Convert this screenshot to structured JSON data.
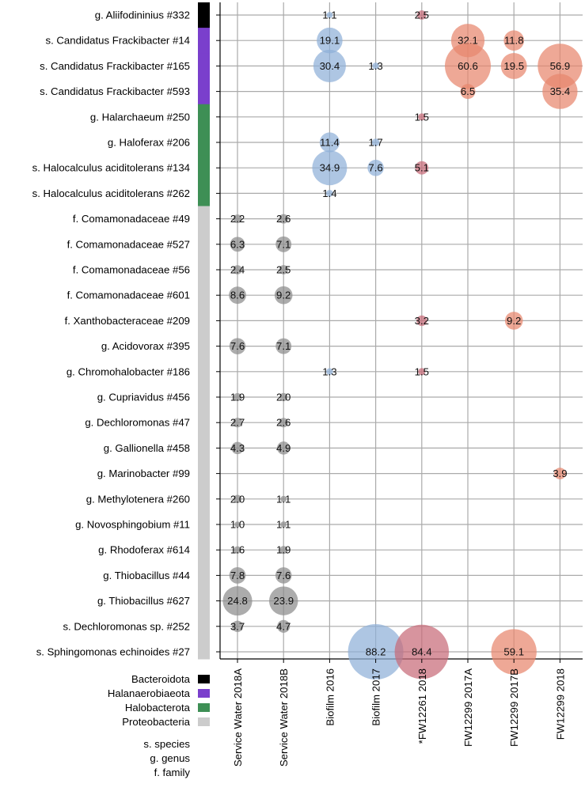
{
  "chart_data": {
    "type": "bubble-matrix",
    "columns": [
      "Service Water 2018A",
      "Service Water 2018B",
      "Biofilm 2016",
      "Biofilm 2017",
      "*FW12261 2018",
      "FW12299 2017A",
      "FW12299 2017B",
      "FW12299 2018"
    ],
    "column_colors": [
      "#8c8c8c",
      "#8c8c8c",
      "#8fb0d8",
      "#8fb0d8",
      "#c76b78",
      "#e8866e",
      "#e8866e",
      "#e8866e"
    ],
    "rows": [
      {
        "label": "g. Aliifodininius #332",
        "phylum": "Bacteroidota",
        "values": [
          null,
          null,
          1.1,
          null,
          2.5,
          null,
          null,
          null
        ]
      },
      {
        "label": "s. Candidatus Frackibacter #14",
        "phylum": "Halanaerobiaeota",
        "values": [
          null,
          null,
          19.1,
          null,
          null,
          32.1,
          11.8,
          null
        ]
      },
      {
        "label": "s. Candidatus Frackibacter #165",
        "phylum": "Halanaerobiaeota",
        "values": [
          null,
          null,
          30.4,
          1.3,
          null,
          60.6,
          19.5,
          56.9
        ]
      },
      {
        "label": "s. Candidatus Frackibacter #593",
        "phylum": "Halanaerobiaeota",
        "values": [
          null,
          null,
          null,
          null,
          null,
          6.5,
          null,
          35.4
        ]
      },
      {
        "label": "g. Halarchaeum #250",
        "phylum": "Halobacterota",
        "values": [
          null,
          null,
          null,
          null,
          1.5,
          null,
          null,
          null
        ]
      },
      {
        "label": "g. Haloferax #206",
        "phylum": "Halobacterota",
        "values": [
          null,
          null,
          11.4,
          1.7,
          null,
          null,
          null,
          null
        ]
      },
      {
        "label": "s. Halocalculus aciditolerans #134",
        "phylum": "Halobacterota",
        "values": [
          null,
          null,
          34.9,
          7.6,
          5.1,
          null,
          null,
          null
        ]
      },
      {
        "label": "s. Halocalculus aciditolerans #262",
        "phylum": "Halobacterota",
        "values": [
          null,
          null,
          1.4,
          null,
          null,
          null,
          null,
          null
        ]
      },
      {
        "label": "f. Comamonadaceae #49",
        "phylum": "Proteobacteria",
        "values": [
          2.2,
          2.6,
          null,
          null,
          null,
          null,
          null,
          null
        ]
      },
      {
        "label": "f. Comamonadaceae #527",
        "phylum": "Proteobacteria",
        "values": [
          6.3,
          7.1,
          null,
          null,
          null,
          null,
          null,
          null
        ]
      },
      {
        "label": "f. Comamonadaceae #56",
        "phylum": "Proteobacteria",
        "values": [
          2.4,
          2.5,
          null,
          null,
          null,
          null,
          null,
          null
        ]
      },
      {
        "label": "f. Comamonadaceae #601",
        "phylum": "Proteobacteria",
        "values": [
          8.6,
          9.2,
          null,
          null,
          null,
          null,
          null,
          null
        ]
      },
      {
        "label": "f. Xanthobacteraceae #209",
        "phylum": "Proteobacteria",
        "values": [
          null,
          null,
          null,
          null,
          3.2,
          null,
          9.2,
          null
        ]
      },
      {
        "label": "g. Acidovorax #395",
        "phylum": "Proteobacteria",
        "values": [
          7.6,
          7.1,
          null,
          null,
          null,
          null,
          null,
          null
        ]
      },
      {
        "label": "g. Chromohalobacter #186",
        "phylum": "Proteobacteria",
        "values": [
          null,
          null,
          1.3,
          null,
          1.5,
          null,
          null,
          null
        ]
      },
      {
        "label": "g. Cupriavidus #456",
        "phylum": "Proteobacteria",
        "values": [
          1.9,
          2.0,
          null,
          null,
          null,
          null,
          null,
          null
        ]
      },
      {
        "label": "g. Dechloromonas #47",
        "phylum": "Proteobacteria",
        "values": [
          2.7,
          2.6,
          null,
          null,
          null,
          null,
          null,
          null
        ]
      },
      {
        "label": "g. Gallionella #458",
        "phylum": "Proteobacteria",
        "values": [
          4.3,
          4.9,
          null,
          null,
          null,
          null,
          null,
          null
        ]
      },
      {
        "label": "g. Marinobacter #99",
        "phylum": "Proteobacteria",
        "values": [
          null,
          null,
          null,
          null,
          null,
          null,
          null,
          3.9
        ]
      },
      {
        "label": "g. Methylotenera #260",
        "phylum": "Proteobacteria",
        "values": [
          2.0,
          1.1,
          null,
          null,
          null,
          null,
          null,
          null
        ]
      },
      {
        "label": "g. Novosphingobium #11",
        "phylum": "Proteobacteria",
        "values": [
          1.0,
          1.1,
          null,
          null,
          null,
          null,
          null,
          null
        ]
      },
      {
        "label": "g. Rhodoferax #614",
        "phylum": "Proteobacteria",
        "values": [
          1.6,
          1.9,
          null,
          null,
          null,
          null,
          null,
          null
        ]
      },
      {
        "label": "g. Thiobacillus #44",
        "phylum": "Proteobacteria",
        "values": [
          7.8,
          7.6,
          null,
          null,
          null,
          null,
          null,
          null
        ]
      },
      {
        "label": "g. Thiobacillus #627",
        "phylum": "Proteobacteria",
        "values": [
          24.8,
          23.9,
          null,
          null,
          null,
          null,
          null,
          null
        ]
      },
      {
        "label": "s. Dechloromonas sp. #252",
        "phylum": "Proteobacteria",
        "values": [
          3.7,
          4.7,
          null,
          null,
          null,
          null,
          null,
          null
        ]
      },
      {
        "label": "s. Sphingomonas echinoides #27",
        "phylum": "Proteobacteria",
        "values": [
          null,
          null,
          null,
          88.2,
          84.4,
          null,
          59.1,
          null
        ]
      }
    ],
    "phyla": [
      {
        "name": "Bacteroidota",
        "color": "#000000"
      },
      {
        "name": "Halanaerobiaeota",
        "color": "#7a3fcc"
      },
      {
        "name": "Halobacterota",
        "color": "#3e8f55"
      },
      {
        "name": "Proteobacteria",
        "color": "#cccccc"
      }
    ],
    "rank_legend": [
      "s. species",
      "g. genus",
      "f. family"
    ],
    "size_max_value": 88.2
  }
}
